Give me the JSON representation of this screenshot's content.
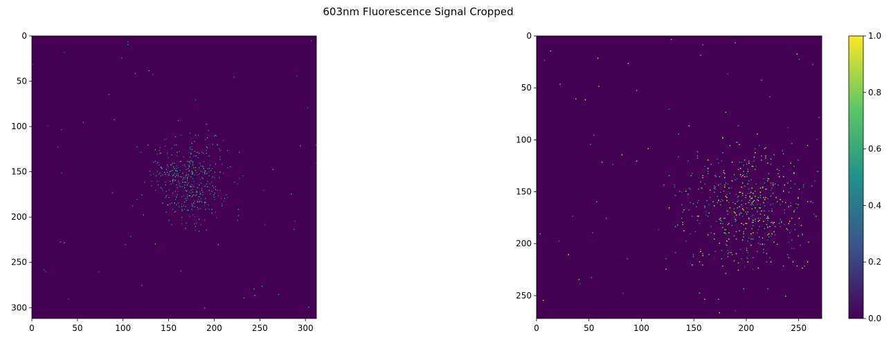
{
  "figure": {
    "suptitle": "603nm Fluorescence Signal Cropped"
  },
  "chart_data": [
    {
      "type": "heatmap",
      "panel": "left",
      "colormap": "viridis",
      "background_color": "#440154",
      "x_range": [
        0,
        312
      ],
      "y_range": [
        312,
        0
      ],
      "xticks": [
        0,
        50,
        100,
        150,
        200,
        250,
        300
      ],
      "yticks": [
        0,
        50,
        100,
        150,
        200,
        250,
        300
      ],
      "grid": false,
      "distribution": {
        "pattern": "sparse pixels clustered around a center, sparse elsewhere",
        "cluster_center": [
          175,
          160
        ],
        "cluster_spread": 22,
        "cluster_points": 420,
        "background_points": 60,
        "value_range": [
          0.35,
          0.75
        ],
        "seed": 11
      }
    },
    {
      "type": "heatmap",
      "panel": "right",
      "colormap": "viridis",
      "background_color": "#440154",
      "x_range": [
        0,
        272
      ],
      "y_range": [
        272,
        0
      ],
      "xticks": [
        0,
        50,
        100,
        150,
        200,
        250
      ],
      "yticks": [
        0,
        50,
        100,
        150,
        200,
        250
      ],
      "grid": false,
      "distribution": {
        "pattern": "sparse pixels clustered around a center, sparse elsewhere",
        "cluster_center": [
          200,
          165
        ],
        "cluster_spread": 30,
        "cluster_points": 520,
        "background_points": 70,
        "value_range": [
          0.3,
          1.0
        ],
        "seed": 29
      },
      "colorbar": {
        "ticks": [
          "0.0",
          "0.2",
          "0.4",
          "0.6",
          "0.8",
          "1.0"
        ],
        "range": [
          0,
          1
        ],
        "colors": [
          "#440154",
          "#3b528b",
          "#21918c",
          "#5ec962",
          "#fde725"
        ]
      }
    }
  ]
}
